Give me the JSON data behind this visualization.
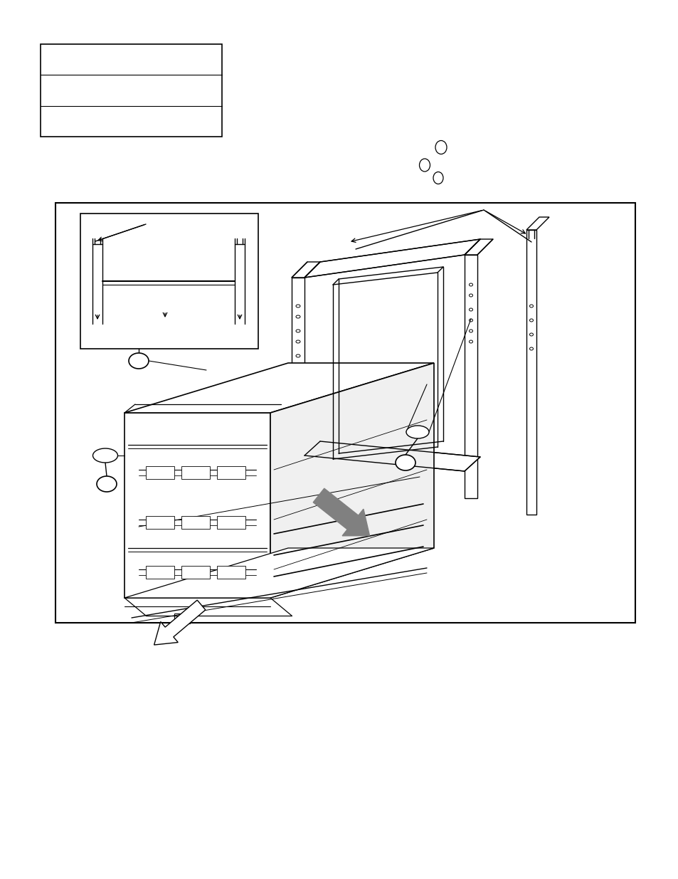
{
  "bg_color": "#ffffff",
  "line_color": "#000000",
  "gray_color": "#808080",
  "figure_width": 9.54,
  "figure_height": 12.35,
  "dpi": 100
}
